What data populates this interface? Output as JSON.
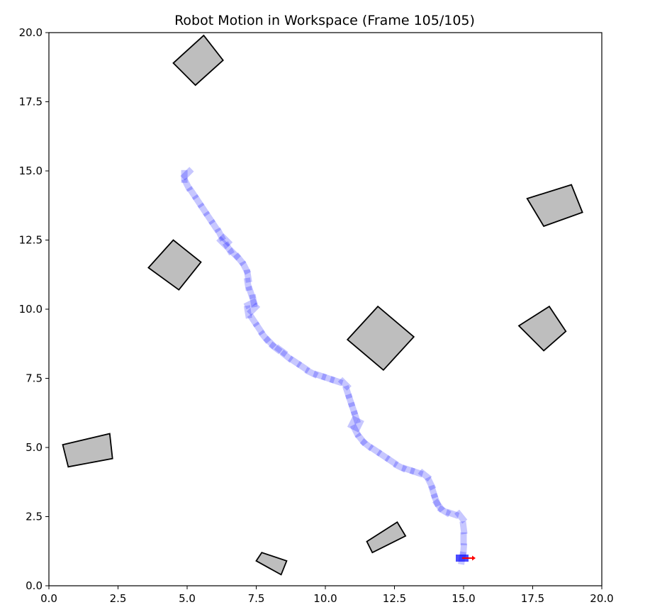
{
  "chart_data": {
    "type": "scatter",
    "title": "Robot Motion in Workspace (Frame 105/105)",
    "xlabel": "",
    "ylabel": "",
    "xlim": [
      0,
      20
    ],
    "ylim": [
      0,
      20
    ],
    "grid": false,
    "xticks": [
      "0.0",
      "2.5",
      "5.0",
      "7.5",
      "10.0",
      "12.5",
      "15.0",
      "17.5",
      "20.0"
    ],
    "yticks": [
      "0.0",
      "2.5",
      "5.0",
      "7.5",
      "10.0",
      "12.5",
      "15.0",
      "17.5",
      "20.0"
    ],
    "colors": {
      "obstacle_fill": "#bebebe",
      "obstacle_edge": "#000000",
      "trail": "#0000ff",
      "robot": "#0000ff",
      "heading_arrow": "#ff0000"
    },
    "obstacles": [
      {
        "corners": [
          [
            4.5,
            18.9
          ],
          [
            5.6,
            19.9
          ],
          [
            6.3,
            19.0
          ],
          [
            5.3,
            18.1
          ]
        ]
      },
      {
        "corners": [
          [
            3.6,
            11.5
          ],
          [
            4.5,
            12.5
          ],
          [
            5.5,
            11.7
          ],
          [
            4.7,
            10.7
          ]
        ]
      },
      {
        "corners": [
          [
            17.3,
            14.0
          ],
          [
            18.9,
            14.5
          ],
          [
            19.3,
            13.5
          ],
          [
            17.9,
            13.0
          ]
        ]
      },
      {
        "corners": [
          [
            17.0,
            9.4
          ],
          [
            18.1,
            10.1
          ],
          [
            18.7,
            9.2
          ],
          [
            17.9,
            8.5
          ]
        ]
      },
      {
        "corners": [
          [
            10.8,
            8.9
          ],
          [
            11.9,
            10.1
          ],
          [
            13.2,
            9.0
          ],
          [
            12.1,
            7.8
          ]
        ]
      },
      {
        "corners": [
          [
            0.5,
            5.1
          ],
          [
            2.2,
            5.5
          ],
          [
            2.3,
            4.6
          ],
          [
            0.7,
            4.3
          ]
        ]
      },
      {
        "corners": [
          [
            11.5,
            1.6
          ],
          [
            12.6,
            2.3
          ],
          [
            12.9,
            1.8
          ],
          [
            11.7,
            1.2
          ]
        ]
      },
      {
        "corners": [
          [
            7.5,
            0.9
          ],
          [
            7.7,
            1.2
          ],
          [
            8.6,
            0.9
          ],
          [
            8.4,
            0.4
          ]
        ]
      }
    ],
    "trajectory": {
      "x": [
        5.0,
        4.9,
        5.0,
        5.2,
        5.4,
        5.6,
        5.8,
        6.0,
        6.2,
        6.3,
        6.4,
        6.5,
        6.7,
        6.9,
        7.1,
        7.2,
        7.2,
        7.3,
        7.4,
        7.4,
        7.3,
        7.2,
        7.4,
        7.6,
        7.8,
        8.0,
        8.2,
        8.4,
        8.6,
        8.9,
        9.2,
        9.5,
        9.8,
        10.1,
        10.4,
        10.7,
        10.8,
        10.9,
        11.0,
        11.1,
        11.2,
        11.0,
        11.1,
        11.3,
        11.5,
        11.8,
        12.1,
        12.4,
        12.7,
        13.0,
        13.3,
        13.6,
        13.8,
        13.9,
        14.0,
        14.1,
        14.3,
        14.6,
        14.9,
        15.0,
        15.0,
        15.0,
        14.95
      ],
      "y": [
        14.9,
        14.8,
        14.5,
        14.2,
        13.9,
        13.6,
        13.3,
        13.0,
        12.7,
        12.4,
        12.5,
        12.2,
        12.0,
        11.8,
        11.5,
        11.2,
        10.9,
        10.6,
        10.3,
        10.0,
        10.2,
        9.9,
        9.6,
        9.3,
        9.0,
        8.8,
        8.6,
        8.5,
        8.3,
        8.1,
        7.9,
        7.7,
        7.6,
        7.5,
        7.4,
        7.3,
        7.0,
        6.7,
        6.4,
        6.1,
        5.8,
        5.9,
        5.6,
        5.3,
        5.1,
        4.9,
        4.7,
        4.5,
        4.3,
        4.2,
        4.1,
        4.0,
        3.7,
        3.4,
        3.1,
        2.9,
        2.7,
        2.6,
        2.5,
        2.1,
        1.7,
        1.3,
        1.0
      ]
    },
    "robot": {
      "x": 14.95,
      "y": 1.0,
      "heading_deg": 0
    }
  }
}
